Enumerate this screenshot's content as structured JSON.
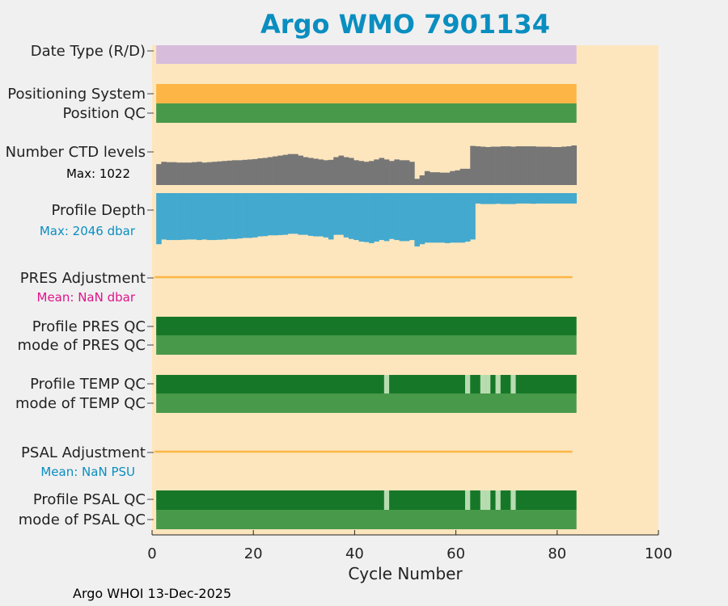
{
  "title": "Argo WMO 7901134",
  "footer": "Argo WHOI 13-Dec-2025",
  "colors": {
    "figure_bg": "#f0f0f0",
    "plot_bg": "#fde6bd",
    "title": "#0a8ec0",
    "date_type": "#d7bcdc",
    "positioning": "#fdb545",
    "qc_good": "#48994a",
    "qc_profile_good": "#177728",
    "qc_bad": "#b7dcb0",
    "ctd": "#767676",
    "depth": "#43a9cf",
    "adjustment_line": "#fdb545",
    "pres_mean_text": "#e0148a",
    "psal_mean_text": "#0a8ec0"
  },
  "chart_data": {
    "type": "bar",
    "xlabel": "Cycle Number",
    "xlim": [
      0,
      100
    ],
    "xticks": [
      0,
      20,
      40,
      60,
      80,
      100
    ],
    "last_cycle": 83,
    "rows": [
      {
        "key": "date_type",
        "label": "Date Type (R/D)",
        "kind": "full",
        "color_key": "date_type"
      },
      {
        "key": "positioning",
        "label": "Positioning System",
        "kind": "full",
        "color_key": "positioning"
      },
      {
        "key": "position_qc",
        "label": "Position QC",
        "kind": "full",
        "color_key": "qc_good"
      },
      {
        "key": "ctd_levels",
        "label": "Number CTD levels",
        "sublabel": "Max: 1022",
        "kind": "levels",
        "max": 1022,
        "color_key": "ctd"
      },
      {
        "key": "profile_depth",
        "label": "Profile Depth",
        "sublabel": "Max: 2046 dbar",
        "kind": "depth",
        "max": 2046,
        "color_key": "depth"
      },
      {
        "key": "pres_adj",
        "label": "PRES Adjustment",
        "sublabel": "Mean:  NaN dbar",
        "kind": "line",
        "color_key": "adjustment_line"
      },
      {
        "key": "profile_pres_qc",
        "label": "Profile PRES QC",
        "kind": "qc",
        "color_key": "qc_profile_good",
        "bad_cycles": []
      },
      {
        "key": "mode_pres_qc",
        "label": "mode of PRES QC",
        "kind": "full",
        "color_key": "qc_good"
      },
      {
        "key": "profile_temp_qc",
        "label": "Profile TEMP QC",
        "kind": "qc",
        "color_key": "qc_profile_good",
        "bad_cycles": [
          46,
          62,
          65,
          66,
          68,
          71
        ]
      },
      {
        "key": "mode_temp_qc",
        "label": "mode of TEMP QC",
        "kind": "full",
        "color_key": "qc_good"
      },
      {
        "key": "psal_adj",
        "label": "PSAL Adjustment",
        "sublabel": "Mean:  NaN PSU",
        "kind": "line",
        "color_key": "adjustment_line"
      },
      {
        "key": "profile_psal_qc",
        "label": "Profile PSAL QC",
        "kind": "qc",
        "color_key": "qc_profile_good",
        "bad_cycles": [
          46,
          62,
          65,
          66,
          68,
          71
        ]
      },
      {
        "key": "mode_psal_qc",
        "label": "mode of PSAL QC",
        "kind": "full",
        "color_key": "qc_good"
      }
    ],
    "ctd_levels_values": [
      540,
      600,
      590,
      590,
      580,
      580,
      580,
      590,
      600,
      580,
      590,
      600,
      610,
      620,
      630,
      640,
      640,
      650,
      660,
      670,
      690,
      700,
      720,
      740,
      760,
      780,
      800,
      800,
      760,
      720,
      700,
      680,
      660,
      640,
      650,
      720,
      760,
      720,
      700,
      640,
      620,
      600,
      620,
      660,
      700,
      660,
      620,
      660,
      640,
      640,
      600,
      160,
      250,
      360,
      330,
      330,
      320,
      320,
      360,
      380,
      420,
      420,
      1010,
      1000,
      990,
      980,
      990,
      990,
      1000,
      1000,
      990,
      1000,
      1000,
      1000,
      1000,
      990,
      990,
      990,
      980,
      980,
      990,
      1000,
      1022
    ],
    "profile_depth_values": [
      1960,
      1780,
      1800,
      1800,
      1800,
      1790,
      1780,
      1780,
      1800,
      1780,
      1800,
      1800,
      1790,
      1780,
      1760,
      1760,
      1740,
      1720,
      1720,
      1700,
      1660,
      1650,
      1620,
      1620,
      1610,
      1600,
      1560,
      1560,
      1600,
      1600,
      1640,
      1660,
      1660,
      1700,
      1780,
      1600,
      1600,
      1700,
      1760,
      1800,
      1860,
      1880,
      1920,
      1860,
      1800,
      1840,
      1760,
      1800,
      1840,
      1840,
      1800,
      2046,
      1960,
      1900,
      1900,
      1900,
      1900,
      1920,
      1900,
      1900,
      1900,
      1860,
      1780,
      400,
      420,
      420,
      420,
      410,
      420,
      420,
      420,
      400,
      400,
      400,
      410,
      400,
      400,
      400,
      400,
      400,
      400,
      400,
      400
    ]
  }
}
